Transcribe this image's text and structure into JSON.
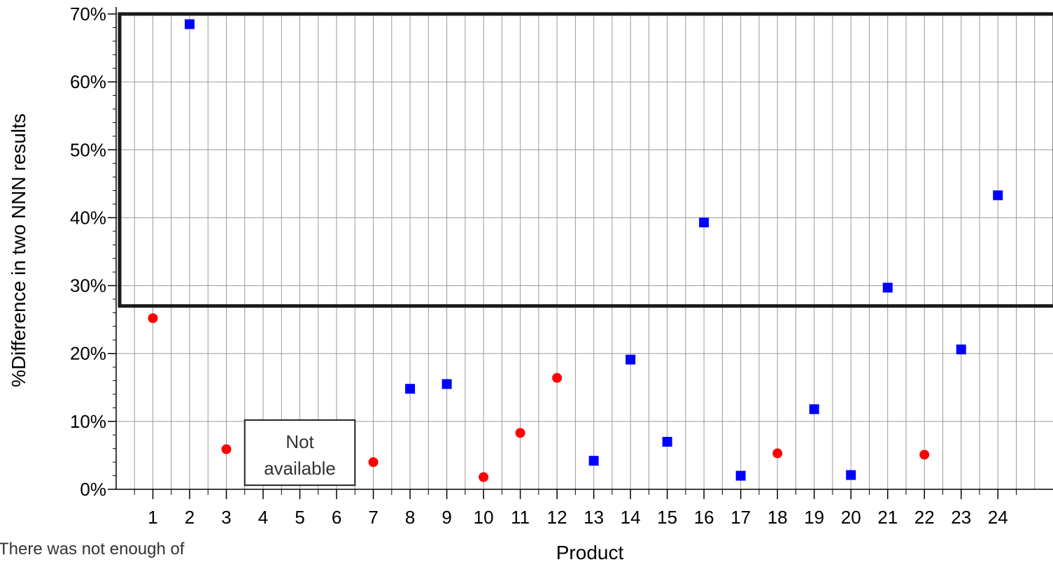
{
  "chart_data": {
    "type": "scatter",
    "title": "",
    "xlabel": "Product",
    "ylabel": "%Difference in two NNN results",
    "x_tick_labels": [
      "1",
      "2",
      "3",
      "4",
      "5",
      "6",
      "7",
      "8",
      "9",
      "10",
      "11",
      "12",
      "13",
      "14",
      "15",
      "16",
      "17",
      "18",
      "19",
      "20",
      "21",
      "22",
      "23",
      "24"
    ],
    "y_tick_labels": [
      "0%",
      "10%",
      "20%",
      "30%",
      "40%",
      "50%",
      "60%",
      "70%"
    ],
    "xlim": [
      0,
      25.5
    ],
    "ylim": [
      0,
      70
    ],
    "grid": true,
    "legend": "none",
    "series": [
      {
        "marker": "circle",
        "color": "#ff0000",
        "points": [
          {
            "x": 1,
            "y": 25.2
          },
          {
            "x": 3,
            "y": 5.9
          },
          {
            "x": 7,
            "y": 4.0
          },
          {
            "x": 10,
            "y": 1.8
          },
          {
            "x": 11,
            "y": 8.3
          },
          {
            "x": 12,
            "y": 16.4
          },
          {
            "x": 18,
            "y": 5.3
          },
          {
            "x": 22,
            "y": 5.1
          }
        ]
      },
      {
        "marker": "square",
        "color": "#0000ff",
        "points": [
          {
            "x": 2,
            "y": 68.5
          },
          {
            "x": 8,
            "y": 14.8
          },
          {
            "x": 9,
            "y": 15.5
          },
          {
            "x": 13,
            "y": 4.2
          },
          {
            "x": 14,
            "y": 19.1
          },
          {
            "x": 15,
            "y": 7.0
          },
          {
            "x": 16,
            "y": 39.3
          },
          {
            "x": 17,
            "y": 2.0
          },
          {
            "x": 19,
            "y": 11.8
          },
          {
            "x": 20,
            "y": 2.1
          },
          {
            "x": 21,
            "y": 29.7
          },
          {
            "x": 23,
            "y": 20.6
          },
          {
            "x": 24,
            "y": 43.3
          }
        ]
      }
    ],
    "highlight_region": {
      "x_from": 0,
      "x_to": 25.5,
      "y_from": 27,
      "y_to": 70
    },
    "annotations": [
      {
        "text_lines": [
          "Not",
          "available"
        ],
        "x_from": 3.5,
        "x_to": 6.5,
        "y_from": 0.6,
        "y_to": 10.2
      }
    ],
    "footnote": "There was not enough of"
  }
}
